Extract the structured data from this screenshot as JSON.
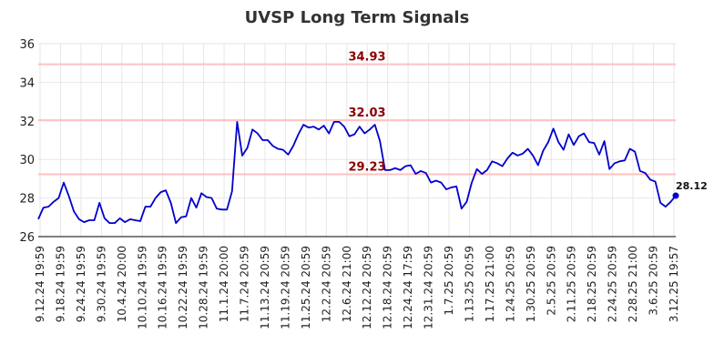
{
  "chart_data": {
    "type": "line",
    "title": "UVSP Long Term Signals",
    "xlabel": "",
    "ylabel": "",
    "ylim": [
      26,
      36
    ],
    "yticks": [
      26,
      28,
      30,
      32,
      34,
      36
    ],
    "grid": true,
    "x_tick_labels": [
      "9.12.24 19:59",
      "9.18.24 19:59",
      "9.24.24 19:59",
      "9.30.24 19:59",
      "10.4.24 20:00",
      "10.10.24 19:59",
      "10.16.24 19:59",
      "10.22.24 19:59",
      "10.28.24 19:59",
      "11.1.24 20:00",
      "11.7.24 20:59",
      "11.13.24 20:59",
      "11.19.24 20:59",
      "11.25.24 20:59",
      "12.2.24 20:59",
      "12.6.24 21:00",
      "12.12.24 20:59",
      "12.18.24 20:59",
      "12.24.24 17:59",
      "12.31.24 20:59",
      "1.7.25 20:59",
      "1.13.25 20:59",
      "1.17.25 21:00",
      "1.24.25 20:59",
      "1.30.25 20:59",
      "2.5.25 20:59",
      "2.11.25 20:59",
      "2.18.25 20:59",
      "2.24.25 20:59",
      "2.28.25 21:00",
      "3.6.25 20:59",
      "3.12.25 19:57"
    ],
    "series": [
      {
        "values": [
          26.9,
          27.5,
          27.55,
          27.8,
          28.0,
          28.8,
          28.1,
          27.3,
          26.9,
          26.75,
          26.85,
          26.85,
          27.75,
          26.95,
          26.7,
          26.7,
          26.95,
          26.75,
          26.9,
          26.85,
          26.8,
          27.55,
          27.55,
          28.0,
          28.3,
          28.4,
          27.75,
          26.7,
          27.0,
          27.05,
          28.0,
          27.5,
          28.25,
          28.05,
          28.0,
          27.45,
          27.4,
          27.4,
          28.35,
          31.95,
          30.2,
          30.6,
          31.55,
          31.35,
          31.0,
          31.0,
          30.7,
          30.55,
          30.5,
          30.25,
          30.7,
          31.3,
          31.8,
          31.65,
          31.7,
          31.55,
          31.75,
          31.35,
          31.95,
          31.95,
          31.7,
          31.2,
          31.3,
          31.7,
          31.35,
          31.55,
          31.8,
          30.95,
          29.45,
          29.45,
          29.55,
          29.45,
          29.65,
          29.7,
          29.25,
          29.4,
          29.3,
          28.8,
          28.9,
          28.8,
          28.45,
          28.55,
          28.6,
          27.45,
          27.8,
          28.8,
          29.5,
          29.25,
          29.45,
          29.9,
          29.8,
          29.65,
          30.05,
          30.35,
          30.2,
          30.3,
          30.55,
          30.2,
          29.7,
          30.45,
          30.9,
          31.6,
          30.9,
          30.5,
          31.3,
          30.75,
          31.2,
          31.35,
          30.9,
          30.85,
          30.25,
          30.95,
          29.5,
          29.8,
          29.9,
          29.95,
          30.55,
          30.4,
          29.4,
          29.3,
          28.95,
          28.85,
          27.75,
          27.55,
          27.8,
          28.12
        ],
        "color": "#0000cc"
      }
    ],
    "levels": [
      {
        "value": 34.93,
        "label": "34.93"
      },
      {
        "value": 32.03,
        "label": "32.03"
      },
      {
        "value": 29.23,
        "label": "29.23"
      }
    ],
    "level_line_color": "#ffc0c0",
    "level_label_color": "#8b0000",
    "last_point": {
      "value": 28.12,
      "label": "28.12"
    }
  }
}
